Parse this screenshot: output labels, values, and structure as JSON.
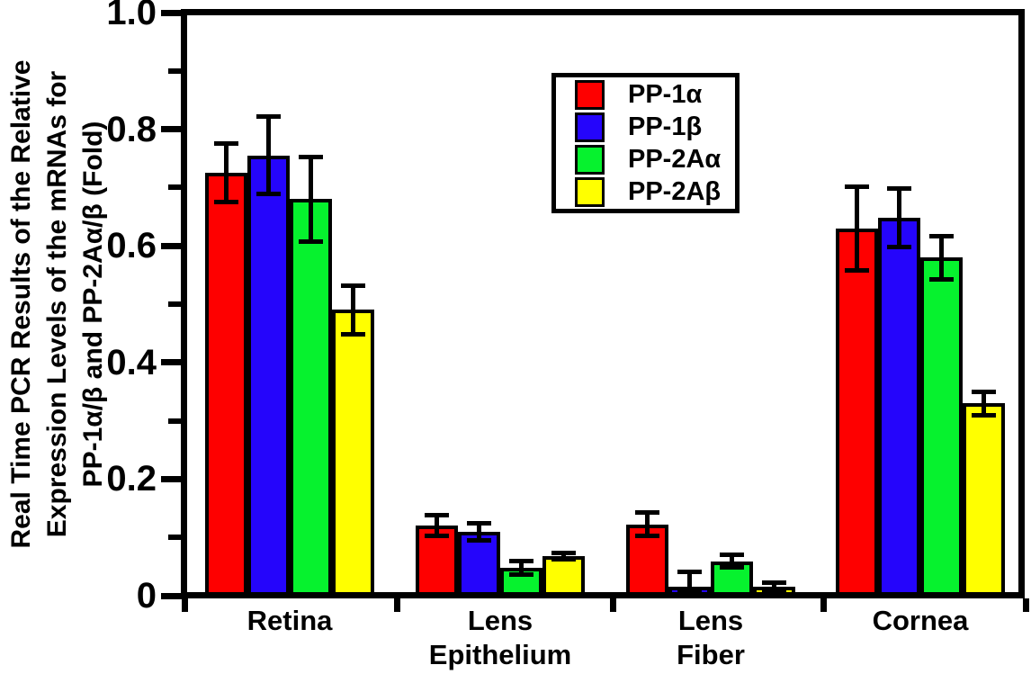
{
  "figure": {
    "background": "#ffffff",
    "axis_color": "#000000"
  },
  "chart_data": {
    "type": "bar",
    "title": "",
    "ylabel_lines": [
      "Real Time PCR Results of the Relative",
      "Expression Levels of the mRNAs for",
      "PP-1α/β and PP-2Aα/β (Fold)"
    ],
    "xlabel": "",
    "categories": [
      "Retina",
      "Lens Epithelium",
      "Lens Fiber",
      "Cornea"
    ],
    "category_label_lines": [
      [
        "Retina"
      ],
      [
        "Lens",
        "Epithelium"
      ],
      [
        "Lens",
        "Fiber"
      ],
      [
        "Cornea"
      ]
    ],
    "series": [
      {
        "name": "PP-1α",
        "color": "#fe0000",
        "values": [
          0.725,
          0.12,
          0.122,
          0.63
        ],
        "errors": [
          0.05,
          0.018,
          0.02,
          0.072
        ]
      },
      {
        "name": "PP-1β",
        "color": "#2505fb",
        "values": [
          0.755,
          0.11,
          0.015,
          0.648
        ],
        "errors": [
          0.066,
          0.015,
          0.026,
          0.05
        ]
      },
      {
        "name": "PP-2Aα",
        "color": "#06f22e",
        "values": [
          0.68,
          0.048,
          0.059,
          0.58
        ],
        "errors": [
          0.072,
          0.011,
          0.011,
          0.037
        ]
      },
      {
        "name": "PP-2Aβ",
        "color": "#ffff00",
        "values": [
          0.49,
          0.068,
          0.015,
          0.33
        ],
        "errors": [
          0.042,
          0.006,
          0.008,
          0.02
        ]
      }
    ],
    "ylim": [
      0,
      1.0
    ],
    "yticks": [
      {
        "value": 0.0,
        "label": "0"
      },
      {
        "value": 0.2,
        "label": "0.2"
      },
      {
        "value": 0.4,
        "label": "0.4"
      },
      {
        "value": 0.6,
        "label": "0.6"
      },
      {
        "value": 0.8,
        "label": "0.8"
      },
      {
        "value": 1.0,
        "label": "1.0"
      }
    ],
    "minor_yticks": [
      0.1,
      0.3,
      0.5,
      0.7,
      0.9
    ],
    "grid": false,
    "legend_position": "inside upper-center-left",
    "error_bars": true
  },
  "legend": {
    "entries": [
      {
        "label": "PP-1α",
        "color": "#fe0000"
      },
      {
        "label": "PP-1β",
        "color": "#2505fb"
      },
      {
        "label": "PP-2Aα",
        "color": "#06f22e"
      },
      {
        "label": "PP-2Aβ",
        "color": "#ffff00"
      }
    ]
  }
}
